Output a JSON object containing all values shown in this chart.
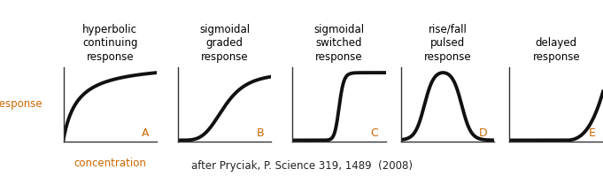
{
  "panels": [
    {
      "title": "hyperbolic\ncontinuing\nresponse",
      "label": "A",
      "curve": "hyperbolic",
      "xlabel": "concentration",
      "ylabel": "response"
    },
    {
      "title": "sigmoidal\ngraded\nresponse",
      "label": "B",
      "curve": "sigmoidal_graded",
      "xlabel": "",
      "ylabel": ""
    },
    {
      "title": "sigmoidal\nswitched\nresponse",
      "label": "C",
      "curve": "sigmoidal_switched",
      "xlabel": "",
      "ylabel": ""
    },
    {
      "title": "rise/fall\npulsed\nresponse",
      "label": "D",
      "curve": "rise_fall",
      "xlabel": "",
      "ylabel": ""
    },
    {
      "title": "delayed\nresponse",
      "label": "E",
      "curve": "delayed",
      "xlabel": "",
      "ylabel": ""
    }
  ],
  "title_color": "#000000",
  "label_color": "#cc6600",
  "axis_label_color": "#cc6600",
  "curve_color": "#111111",
  "curve_lw": 2.8,
  "citation": "after Pryciak, P. Science 319, 1489  (2008)",
  "background_color": "#ffffff",
  "title_fontsize": 8.5,
  "label_fontsize": 9,
  "axis_label_fontsize": 8.5,
  "citation_fontsize": 8.5
}
